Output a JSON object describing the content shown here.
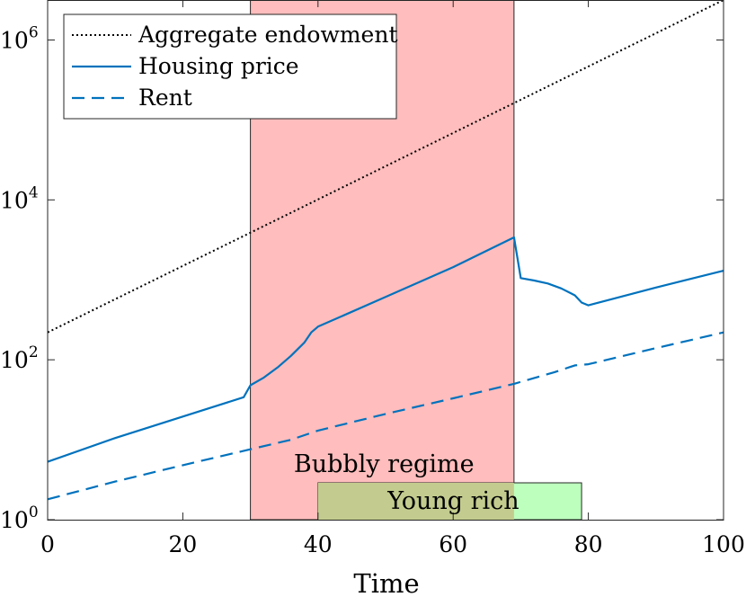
{
  "chart_data": {
    "type": "line",
    "title": "",
    "xlabel": "Time",
    "ylabel": "",
    "xlim": [
      0,
      100
    ],
    "ylim": [
      1,
      3162278
    ],
    "yscale": "log",
    "x_ticks": [
      0,
      20,
      40,
      60,
      80,
      100
    ],
    "x_tick_labels": [
      "0",
      "20",
      "40",
      "60",
      "80",
      "100"
    ],
    "y_ticks": [
      {
        "value": 1,
        "base": "10",
        "exp": "0"
      },
      {
        "value": 100,
        "base": "10",
        "exp": "2"
      },
      {
        "value": 10000,
        "base": "10",
        "exp": "4"
      },
      {
        "value": 1000000,
        "base": "10",
        "exp": "6"
      }
    ],
    "grid": false,
    "legend_position": "top-left",
    "series": [
      {
        "name": "Aggregate endowment",
        "style": "dotted",
        "color": "#000000",
        "points": [
          [
            0,
            220
          ],
          [
            100,
            3162278
          ]
        ]
      },
      {
        "name": "Housing price",
        "style": "solid",
        "color": "#0072BD",
        "points": [
          [
            0,
            5.3
          ],
          [
            10,
            10.5
          ],
          [
            20,
            19.5
          ],
          [
            29,
            34
          ],
          [
            30,
            48
          ],
          [
            32,
            60
          ],
          [
            34,
            80
          ],
          [
            36,
            112
          ],
          [
            38,
            165
          ],
          [
            39,
            220
          ],
          [
            40,
            260
          ],
          [
            50,
            610
          ],
          [
            60,
            1440
          ],
          [
            69,
            3400
          ],
          [
            70,
            1050
          ],
          [
            72,
            980
          ],
          [
            74,
            900
          ],
          [
            76,
            780
          ],
          [
            78,
            640
          ],
          [
            79,
            520
          ],
          [
            80,
            480
          ],
          [
            90,
            800
          ],
          [
            100,
            1300
          ]
        ]
      },
      {
        "name": "Rent",
        "style": "dashed",
        "color": "#0072BD",
        "points": [
          [
            0,
            1.8
          ],
          [
            10,
            3.0
          ],
          [
            20,
            4.8
          ],
          [
            30,
            7.6
          ],
          [
            36,
            10
          ],
          [
            40,
            13
          ],
          [
            50,
            21
          ],
          [
            60,
            33
          ],
          [
            69,
            50
          ],
          [
            75,
            70
          ],
          [
            78,
            85
          ],
          [
            80,
            88
          ],
          [
            90,
            140
          ],
          [
            100,
            220
          ]
        ]
      }
    ],
    "regions": [
      {
        "label": "Bubbly regime",
        "x_start": 30,
        "x_end": 69,
        "color": "#ffbdbd"
      },
      {
        "label": "Young rich",
        "x_start": 40,
        "x_end": 79,
        "color": "#bdffbd"
      }
    ]
  }
}
